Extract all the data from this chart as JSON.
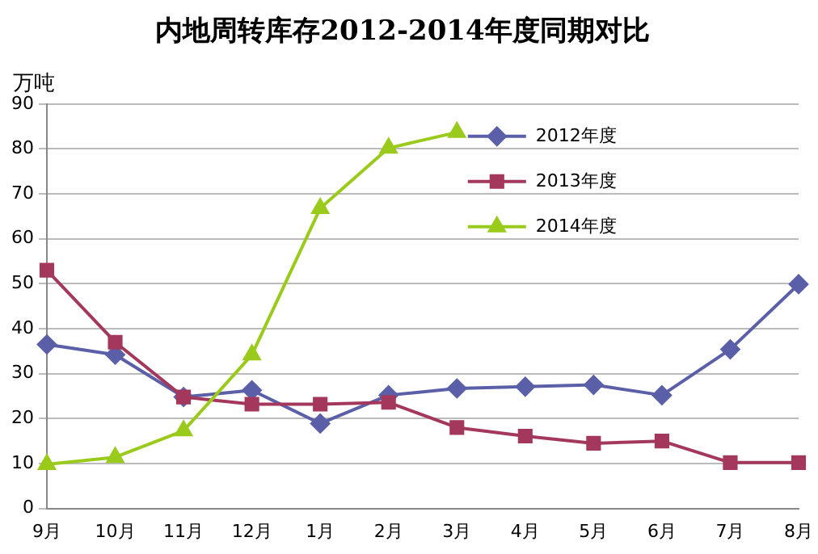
{
  "chart_data": {
    "type": "line",
    "title": "内地周转库存2012-2014年度同期对比",
    "ylabel": "万吨",
    "categories": [
      "9月",
      "10月",
      "11月",
      "12月",
      "1月",
      "2月",
      "3月",
      "4月",
      "5月",
      "6月",
      "7月",
      "8月"
    ],
    "series": [
      {
        "name": "2012年度",
        "color": "#5a5fa8",
        "marker": "diamond",
        "values": [
          36.5,
          34.2,
          24.8,
          26.3,
          18.9,
          25.2,
          26.7,
          27.1,
          27.5,
          25.2,
          35.4,
          49.9
        ]
      },
      {
        "name": "2013年度",
        "color": "#a3385c",
        "marker": "square",
        "values": [
          53,
          37,
          24.8,
          23.2,
          23.2,
          23.6,
          18,
          16.1,
          14.5,
          15,
          10.2,
          10.2
        ]
      },
      {
        "name": "2014年度",
        "color": "#9acb1c",
        "marker": "triangle",
        "values": [
          9.8,
          11.4,
          17.3,
          34.2,
          66.8,
          80.2,
          83.7,
          null,
          null,
          null,
          null,
          null
        ]
      }
    ],
    "ylim": [
      0,
      90
    ],
    "yticks": [
      0,
      10,
      20,
      30,
      40,
      50,
      60,
      70,
      80,
      90
    ],
    "grid": "y",
    "legend": "top right",
    "line_style": "solid"
  }
}
